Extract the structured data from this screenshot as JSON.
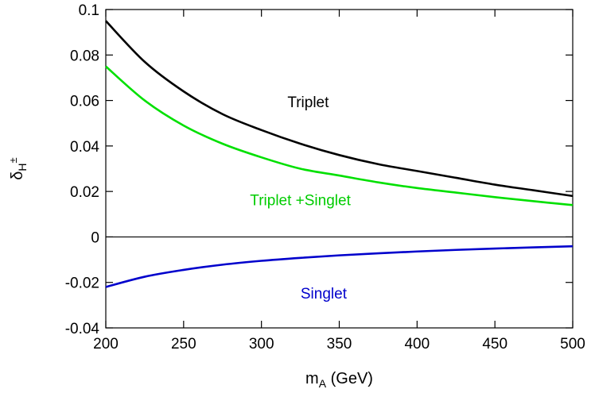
{
  "chart_data": {
    "type": "line",
    "xlabel_main": "m",
    "xlabel_sub": "A",
    "xlabel_tail": " (GeV)",
    "ylabel_main": "δ",
    "ylabel_sub": "H",
    "ylabel_sup": "±",
    "xlim": [
      200,
      500
    ],
    "ylim": [
      -0.04,
      0.1
    ],
    "xticks": [
      200,
      250,
      300,
      350,
      400,
      450,
      500
    ],
    "yticks": [
      -0.04,
      -0.02,
      0,
      0.02,
      0.04,
      0.06,
      0.08,
      0.1
    ],
    "ytick_labels": [
      "-0.04",
      "-0.02",
      "0",
      "0.02",
      "0.04",
      "0.06",
      "0.08",
      "0.1"
    ],
    "zero_line": true,
    "grid": false,
    "series": [
      {
        "name": "Triplet",
        "color": "#000000",
        "x": [
          200,
          225,
          250,
          275,
          300,
          325,
          350,
          375,
          400,
          425,
          450,
          475,
          500
        ],
        "y": [
          0.095,
          0.077,
          0.064,
          0.054,
          0.047,
          0.041,
          0.036,
          0.032,
          0.029,
          0.026,
          0.023,
          0.0205,
          0.018
        ]
      },
      {
        "name": "Triplet +Singlet",
        "color": "#00e000",
        "x": [
          200,
          225,
          250,
          275,
          300,
          325,
          350,
          375,
          400,
          425,
          450,
          475,
          500
        ],
        "y": [
          0.075,
          0.06,
          0.049,
          0.041,
          0.035,
          0.03,
          0.027,
          0.024,
          0.0215,
          0.0195,
          0.0175,
          0.0157,
          0.014
        ]
      },
      {
        "name": "Singlet",
        "color": "#0000cc",
        "x": [
          200,
          225,
          250,
          275,
          300,
          325,
          350,
          375,
          400,
          425,
          450,
          475,
          500
        ],
        "y": [
          -0.022,
          -0.0175,
          -0.0145,
          -0.0122,
          -0.0105,
          -0.0092,
          -0.0081,
          -0.0072,
          -0.0064,
          -0.0057,
          -0.0051,
          -0.0046,
          -0.0041
        ]
      }
    ],
    "annotations": [
      {
        "text": "Triplet",
        "color": "#000000",
        "x": 330,
        "y": 0.057
      },
      {
        "text": "Triplet +Singlet",
        "color": "#00cc00",
        "x": 325,
        "y": 0.014
      },
      {
        "text": "Singlet",
        "color": "#0000cc",
        "x": 340,
        "y": -0.027
      }
    ]
  }
}
